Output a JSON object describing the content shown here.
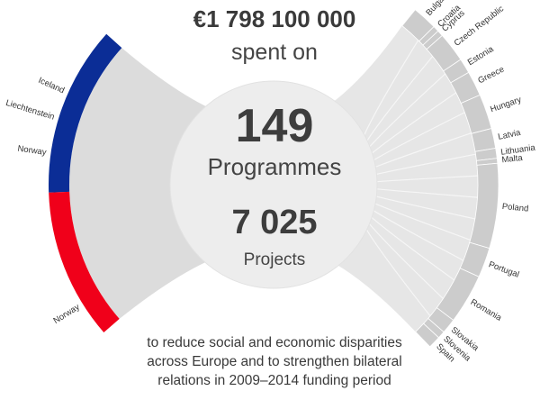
{
  "header": {
    "amount": "€1 798 100 000",
    "spent_on": "spent on"
  },
  "center": {
    "programmes_count": "149",
    "programmes_label": "Programmes",
    "projects_count": "7 025",
    "projects_label": "Projects"
  },
  "footer": {
    "line1": "to reduce social and economic disparities",
    "line2": "across Europe and to strengthen bilateral",
    "line3": "relations in 2009–2014 funding period"
  },
  "colors": {
    "eea_grants": "#0b2d96",
    "norway_grants": "#f0001a",
    "beneficiary_arc": "#cccccc",
    "flow": "#dcdcdc",
    "center_circle": "#ededed"
  },
  "donors": {
    "eea_grants": {
      "labels": [
        "Iceland",
        "Liechtenstein",
        "Norway"
      ]
    },
    "norway_grants": {
      "labels": [
        "Norway"
      ]
    }
  },
  "beneficiary_states": [
    "Bulgaria",
    "Croatia",
    "Cyprus",
    "Czech Republic",
    "Estonia",
    "Greece",
    "Hungary",
    "Latvia",
    "Lithuania",
    "Malta",
    "Poland",
    "Portugal",
    "Romania",
    "Slovakia",
    "Slovenia",
    "Spain"
  ]
}
